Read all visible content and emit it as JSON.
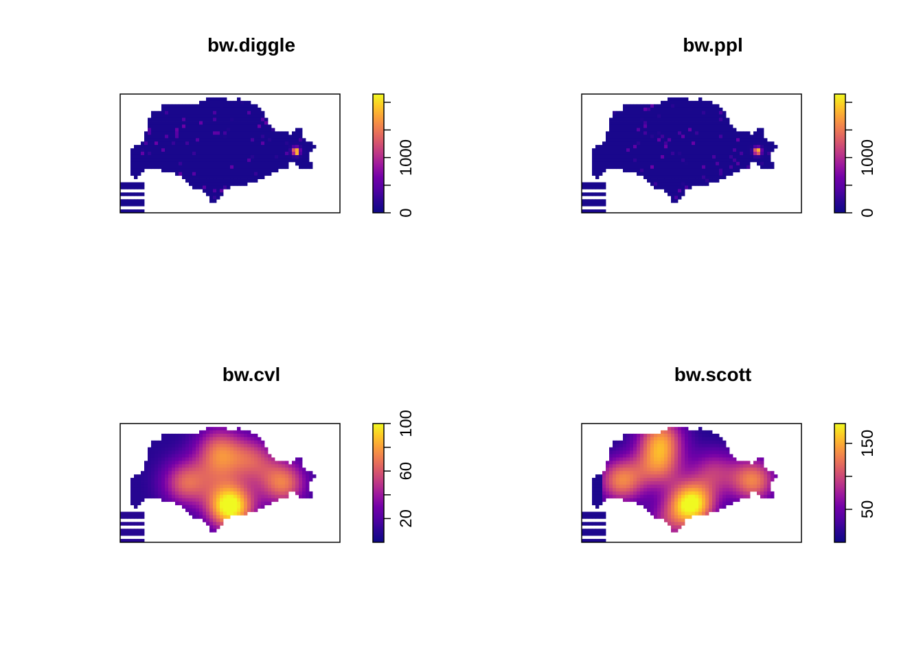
{
  "chart_data": [
    {
      "type": "heatmap",
      "title": "bw.diggle",
      "colorbar": {
        "ticks": [
          0,
          1000
        ],
        "tick_marks": [
          0,
          500,
          1000,
          1500,
          2000
        ],
        "range": [
          0,
          2150
        ]
      },
      "hotspots": [
        {
          "lon": 0.8,
          "lat": 0.52,
          "value": 2000
        }
      ],
      "base_level": 0.04,
      "speckle_level": 0.25
    },
    {
      "type": "heatmap",
      "title": "bw.ppl",
      "colorbar": {
        "ticks": [
          0,
          1000
        ],
        "tick_marks": [
          0,
          500,
          1000,
          1500,
          2000
        ],
        "range": [
          0,
          2150
        ]
      },
      "hotspots": [
        {
          "lon": 0.8,
          "lat": 0.52,
          "value": 2000
        }
      ],
      "base_level": 0.04,
      "speckle_level": 0.25
    },
    {
      "type": "heatmap",
      "title": "bw.cvl",
      "colorbar": {
        "ticks": [
          20,
          60,
          100
        ],
        "tick_marks": [
          20,
          40,
          60,
          80,
          100
        ],
        "range": [
          0,
          100
        ]
      },
      "hotspots": [
        {
          "lon": 0.5,
          "lat": 0.3,
          "value": 100
        },
        {
          "lon": 0.74,
          "lat": 0.5,
          "value": 62
        },
        {
          "lon": 0.3,
          "lat": 0.5,
          "value": 55
        },
        {
          "lon": 0.45,
          "lat": 0.8,
          "value": 45
        },
        {
          "lon": 0.6,
          "lat": 0.7,
          "value": 45
        },
        {
          "lon": 0.45,
          "lat": 0.62,
          "value": 30
        }
      ],
      "base_level": 0.08,
      "speckle_level": 0
    },
    {
      "type": "heatmap",
      "title": "bw.scott",
      "colorbar": {
        "ticks": [
          50,
          150
        ],
        "tick_marks": [
          50,
          100,
          150
        ],
        "range": [
          0,
          180
        ]
      },
      "hotspots": [
        {
          "lon": 0.5,
          "lat": 0.32,
          "value": 175
        },
        {
          "lon": 0.78,
          "lat": 0.52,
          "value": 120
        },
        {
          "lon": 0.18,
          "lat": 0.52,
          "value": 120
        },
        {
          "lon": 0.36,
          "lat": 0.88,
          "value": 110
        },
        {
          "lon": 0.35,
          "lat": 0.65,
          "value": 100
        },
        {
          "lon": 0.6,
          "lat": 0.6,
          "value": 70
        },
        {
          "lon": 0.38,
          "lat": 0.15,
          "value": 55
        }
      ],
      "base_level": 0.05,
      "speckle_level": 0
    }
  ]
}
